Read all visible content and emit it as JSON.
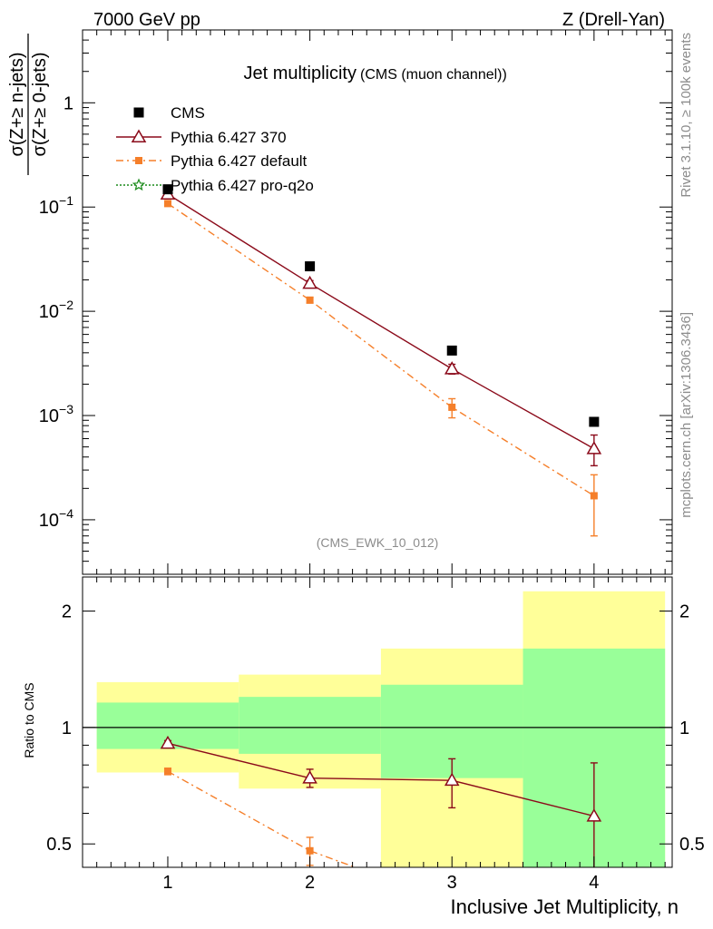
{
  "header": {
    "left": "7000 GeV pp",
    "right": "Z (Drell-Yan)"
  },
  "side": {
    "rivet": "Rivet 3.1.10, ≥ 100k events",
    "mcplots": "mcplots.cern.ch [arXiv:1306.3436]"
  },
  "chart_data": [
    {
      "type": "scatter",
      "panel": "main",
      "title": "Jet multiplicity",
      "subtitle": "(CMS (muon channel))",
      "watermark": "(CMS_EWK_10_012)",
      "ylabel_num": "σ(Z+≥ n-jets)",
      "ylabel_den": "σ(Z+≥ 0-jets)",
      "yscale": "log",
      "xlim": [
        0.4,
        4.55
      ],
      "ylim": [
        3e-05,
        5
      ],
      "ytick_labels": [
        {
          "value": 1,
          "base": "1",
          "exp": ""
        },
        {
          "value": 0.1,
          "base": "10",
          "exp": "−1"
        },
        {
          "value": 0.01,
          "base": "10",
          "exp": "−2"
        },
        {
          "value": 0.001,
          "base": "10",
          "exp": "−3"
        },
        {
          "value": 0.0001,
          "base": "10",
          "exp": "−4"
        }
      ],
      "legend_position": "top-left",
      "x": [
        1,
        2,
        3,
        4
      ],
      "series": [
        {
          "name": "CMS",
          "color": "#000000",
          "marker": "square",
          "values": [
            0.148,
            0.027,
            0.0042,
            0.00087
          ]
        },
        {
          "name": "Pythia 6.427 370",
          "color": "#8b0a1a",
          "marker": "open-triangle",
          "line": "solid",
          "values": [
            0.133,
            0.0185,
            0.0028,
            0.00048
          ],
          "err_low": [
            0.004,
            0.0012,
            0.0003,
            0.00015
          ],
          "err_high": [
            0.004,
            0.0012,
            0.0003,
            0.00017
          ]
        },
        {
          "name": "Pythia 6.427 default",
          "color": "#f57f2a",
          "marker": "square",
          "line": "dashdot",
          "values": [
            0.108,
            0.0128,
            0.0012,
            0.00017
          ],
          "err_low": [
            0.003,
            0.0008,
            0.00025,
            0.0001
          ],
          "err_high": [
            0.003,
            0.0008,
            0.00025,
            0.0001
          ]
        },
        {
          "name": "Pythia 6.427 pro-q2o",
          "color": "#1a8a1a",
          "marker": "open-star",
          "line": "dotted",
          "values": []
        }
      ]
    },
    {
      "type": "scatter",
      "panel": "ratio",
      "ylabel": "Ratio to CMS",
      "yscale": "log",
      "xlim": [
        0.4,
        4.55
      ],
      "ylim": [
        0.435,
        2.45
      ],
      "xlabel": "Inclusive Jet Multiplicity, n",
      "xtick_labels": [
        "1",
        "2",
        "3",
        "4"
      ],
      "ytick_labels": [
        "0.5",
        "1",
        "2"
      ],
      "ytick_values": [
        0.5,
        1,
        2
      ],
      "bands": [
        {
          "x0": 0.5,
          "x1": 1.5,
          "green": [
            0.88,
            1.16
          ],
          "yellow": [
            0.765,
            1.31
          ]
        },
        {
          "x0": 1.5,
          "x1": 2.5,
          "green": [
            0.855,
            1.2
          ],
          "yellow": [
            0.695,
            1.37
          ]
        },
        {
          "x0": 2.5,
          "x1": 3.5,
          "green": [
            0.74,
            1.29
          ],
          "yellow": [
            0.4,
            1.6
          ]
        },
        {
          "x0": 3.5,
          "x1": 4.5,
          "green": [
            0.4,
            1.6
          ],
          "yellow": [
            0.4,
            2.25
          ]
        }
      ],
      "series": [
        {
          "name": "Pythia 6.427 370",
          "color": "#8b0a1a",
          "values": [
            0.91,
            0.74,
            0.73,
            0.59
          ],
          "err_low": [
            0.015,
            0.04,
            0.11,
            0.25
          ],
          "err_high": [
            0.015,
            0.04,
            0.1,
            0.22
          ]
        },
        {
          "name": "Pythia 6.427 default",
          "color": "#f57f2a",
          "values": [
            0.77,
            0.48
          ],
          "err_low": [
            0.015,
            0.04
          ],
          "err_high": [
            0.015,
            0.04
          ],
          "trend_end": [
            2.32,
            0.435
          ]
        }
      ]
    }
  ]
}
